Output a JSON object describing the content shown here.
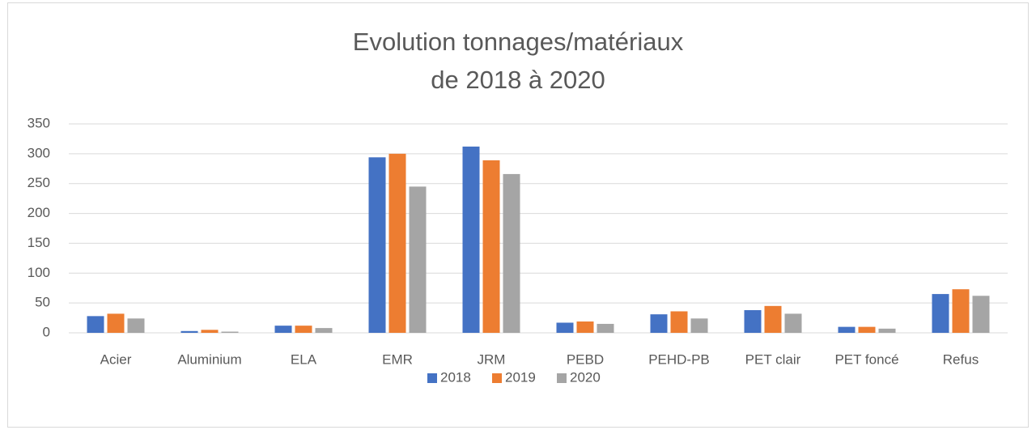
{
  "chart_data": {
    "type": "bar",
    "title": [
      "Evolution tonnages/matériaux",
      "de 2018 à 2020"
    ],
    "categories": [
      "Acier",
      "Aluminium",
      "ELA",
      "EMR",
      "JRM",
      "PEBD",
      "PEHD-PB",
      "PET clair",
      "PET foncé",
      "Refus"
    ],
    "series": [
      {
        "name": "2018",
        "color": "#4472c4",
        "values": [
          28,
          3,
          12,
          294,
          312,
          17,
          31,
          38,
          10,
          65
        ]
      },
      {
        "name": "2019",
        "color": "#ed7d31",
        "values": [
          32,
          5,
          12,
          300,
          289,
          19,
          36,
          45,
          10,
          73
        ]
      },
      {
        "name": "2020",
        "color": "#a5a5a5",
        "values": [
          24,
          2,
          8,
          245,
          266,
          15,
          24,
          32,
          7,
          62
        ]
      }
    ],
    "ylim": [
      0,
      350
    ],
    "yticks": [
      0,
      50,
      100,
      150,
      200,
      250,
      300,
      350
    ],
    "grid": true,
    "legend": "bottom"
  }
}
